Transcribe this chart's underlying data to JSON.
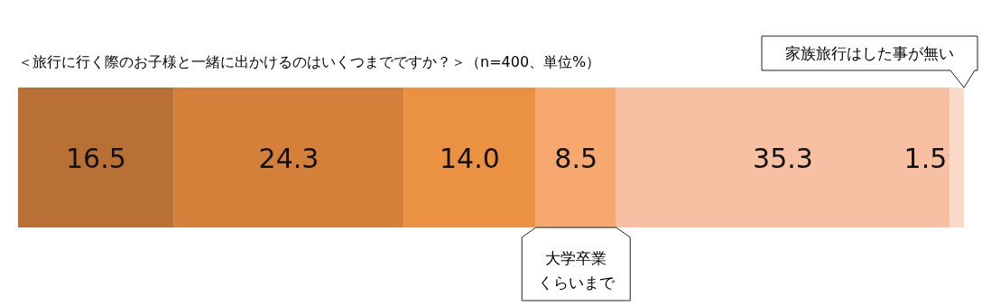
{
  "chart_data": {
    "type": "bar",
    "orientation": "horizontal",
    "stacked": true,
    "legend": false,
    "title": "＜旅行に行く際のお子様と一緒に出かけるのはいくつまでですか？＞（n=400、単位%）",
    "categories": [
      null
    ],
    "series": [
      {
        "color": "#b87035",
        "values": [
          16.5
        ],
        "value_labels": [
          "16.5"
        ]
      },
      {
        "color": "#d4803a",
        "values": [
          24.3
        ],
        "value_labels": [
          "24.3"
        ]
      },
      {
        "color": "#eb9142",
        "values": [
          14.0
        ],
        "value_labels": [
          "14.0"
        ]
      },
      {
        "name": "大学卒業くらいまで",
        "color": "#f6a86f",
        "values": [
          8.5
        ],
        "value_labels": [
          "8.5"
        ]
      },
      {
        "color": "#f8c0a2",
        "values": [
          35.3
        ],
        "value_labels": [
          "35.3"
        ]
      },
      {
        "name": "家族旅行はした事が無い",
        "color": "#fbd9c8",
        "values": [
          1.5
        ],
        "value_labels": [
          "1.5"
        ]
      }
    ]
  }
}
